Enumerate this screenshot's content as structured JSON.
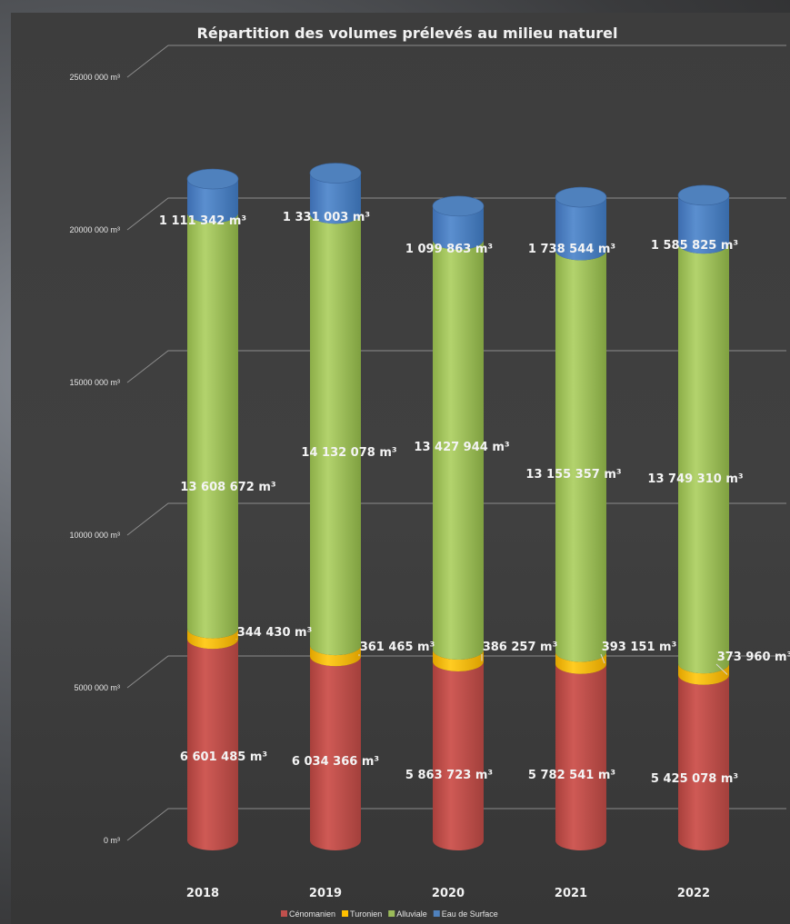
{
  "chart_data": {
    "type": "bar",
    "stacked": true,
    "style": "3d-cylinder",
    "title": "Répartition des volumes prélevés au milieu naturel",
    "categories": [
      "2018",
      "2019",
      "2020",
      "2021",
      "2022"
    ],
    "y_ticks": [
      "0 m³",
      "5000 000 m³",
      "10000 000 m³",
      "15000 000 m³",
      "20000 000 m³",
      "25000 000 m³"
    ],
    "ylim": [
      0,
      25000000
    ],
    "grid": true,
    "legend_position": "bottom",
    "series": [
      {
        "name": "Cénomanien",
        "color": "#c0504d",
        "values": [
          6601485,
          6034366,
          5863723,
          5782541,
          5425078
        ],
        "labels": [
          "6 601 485 m³",
          "6 034 366 m³",
          "5 863 723 m³",
          "5 782 541 m³",
          "5 425 078 m³"
        ]
      },
      {
        "name": "Turonien",
        "color": "#ffc000",
        "values": [
          344430,
          361465,
          386257,
          393151,
          373960
        ],
        "labels": [
          "344 430 m³",
          "361 465 m³",
          "386 257 m³",
          "393 151 m³",
          "373 960 m³"
        ]
      },
      {
        "name": "Alluviale",
        "color": "#9bbb59",
        "values": [
          13608672,
          14132078,
          13427944,
          13155357,
          13749310
        ],
        "labels": [
          "13 608 672 m³",
          "14 132 078 m³",
          "13 427 944 m³",
          "13 155 357 m³",
          "13 749 310 m³"
        ]
      },
      {
        "name": "Eau de Surface",
        "color": "#4f81bd",
        "values": [
          1111342,
          1331003,
          1099863,
          1738544,
          1585825
        ],
        "labels": [
          "1 111 342 m³",
          "1 331 003 m³",
          "1 099 863 m³",
          "1 738 544 m³",
          "1 585 825 m³"
        ]
      }
    ]
  }
}
